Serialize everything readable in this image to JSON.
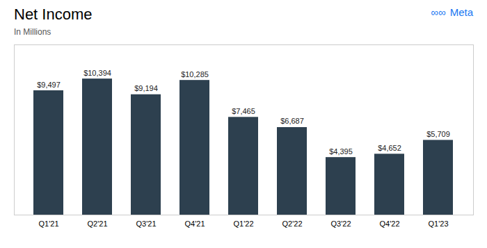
{
  "chart_data": {
    "type": "bar",
    "title": "Net Income",
    "subtitle": "In Millions",
    "categories": [
      "Q1'21",
      "Q2'21",
      "Q3'21",
      "Q4'21",
      "Q1'22",
      "Q2'22",
      "Q3'22",
      "Q4'22",
      "Q1'23"
    ],
    "values": [
      9497,
      10394,
      9194,
      10285,
      7465,
      6687,
      4395,
      4652,
      5709
    ],
    "value_labels": [
      "$9,497",
      "$10,394",
      "$9,194",
      "$10,285",
      "$7,465",
      "$6,687",
      "$4,395",
      "$4,652",
      "$5,709"
    ],
    "color": "#2d404f",
    "ylim": [
      0,
      13000
    ],
    "data_labels": true,
    "tick_labels": "x",
    "annotations": [
      {
        "text": "∞∞",
        "color": "#1877f2"
      },
      {
        "text": "Meta",
        "color": "#1877f2"
      }
    ]
  }
}
